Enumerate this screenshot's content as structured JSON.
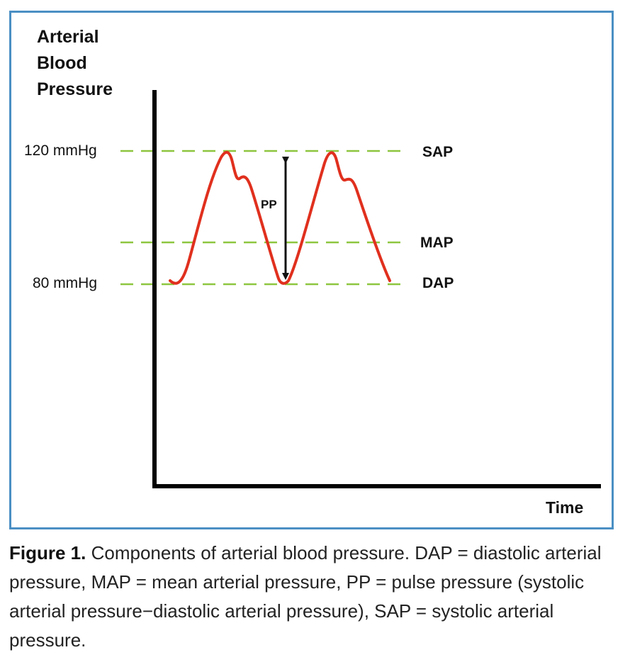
{
  "diagram": {
    "y_axis_label_lines": [
      "Arterial",
      "Blood",
      "Pressure"
    ],
    "x_axis_label": "Time",
    "tick_high": "120 mmHg",
    "tick_low": "80 mmHg",
    "level_labels": {
      "sap": "SAP",
      "map": "MAP",
      "dap": "DAP"
    },
    "pp_label": "PP",
    "colors": {
      "border": "#4a8fc4",
      "waveform": "#e0301e",
      "reference_line": "#8dc63f",
      "axis": "#000000"
    }
  },
  "caption": {
    "label": "Figure 1.",
    "text": "Components of arterial blood pressure. DAP = diastolic arterial pressure, MAP = mean arterial pressure, PP = pulse pressure (systolic arterial pressure−diastolic arterial pressure), SAP = systolic arterial pressure."
  }
}
